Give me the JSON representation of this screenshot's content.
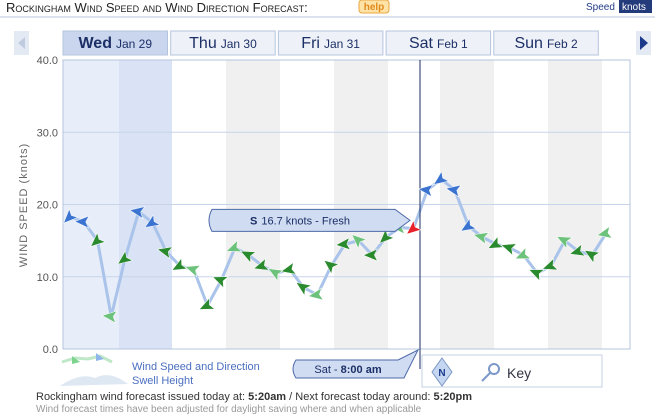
{
  "header": {
    "title": "Rockingham Wind Speed and Wind Direction Forecast:",
    "help": "help",
    "unit_label": "Speed",
    "unit": "knots"
  },
  "days": [
    {
      "name": "Wed",
      "date": "Jan 29"
    },
    {
      "name": "Thu",
      "date": "Jan 30"
    },
    {
      "name": "Fri",
      "date": "Jan 31"
    },
    {
      "name": "Sat",
      "date": "Feb 1"
    },
    {
      "name": "Sun",
      "date": "Feb 2"
    }
  ],
  "chart_data": {
    "type": "line",
    "y_label": "WIND SPEED (knots)",
    "categories": [
      null,
      null,
      null,
      null,
      null,
      null,
      null,
      null,
      null,
      null,
      null,
      null,
      null,
      null,
      null,
      null,
      null,
      null,
      null,
      null,
      null,
      null,
      null,
      null,
      null,
      null,
      null,
      null,
      null,
      null,
      null,
      null,
      null,
      null,
      null,
      null,
      null,
      null,
      null,
      null
    ],
    "series": [
      {
        "name": "Wind Speed and Direction",
        "color": "#a9c3ea",
        "values": [
          18.3,
          17.6,
          15.0,
          4.5,
          12.5,
          19.0,
          17.5,
          13.5,
          11.5,
          11.0,
          6.0,
          9.5,
          14.0,
          13.0,
          11.5,
          10.5,
          11.0,
          8.5,
          7.5,
          11.5,
          14.5,
          15.0,
          13.0,
          15.5,
          16.8,
          16.7,
          22.0,
          23.5,
          22.0,
          17.0,
          15.5,
          14.5,
          14.0,
          13.0,
          10.5,
          11.5,
          15.0,
          13.5,
          13.0,
          16.0
        ]
      }
    ],
    "ylim": [
      0,
      40
    ],
    "yticks": [
      {
        "value": 0,
        "label": "0.0"
      },
      {
        "value": 10,
        "label": "10.0"
      },
      {
        "value": 20,
        "label": "20.0"
      },
      {
        "value": 30,
        "label": "30.0"
      },
      {
        "value": 40,
        "label": "40.0"
      }
    ],
    "grid": true
  },
  "tooltip": {
    "direction": "S",
    "text": "16.7 knots - Fresh"
  },
  "cursor": {
    "day": "Sat - ",
    "time": "8:00 am"
  },
  "legend": {
    "wind": "Wind Speed and Direction",
    "swell": "Swell Height",
    "compass": "N",
    "key": "Key"
  },
  "footer": {
    "issued": "Rockingham wind forecast issued today at: ",
    "issued_time": "5:20am",
    "next": " / Next forecast today around: ",
    "next_time": "5:20pm",
    "note": "Wind forecast times have been adjusted for daylight saving where and when applicable"
  }
}
